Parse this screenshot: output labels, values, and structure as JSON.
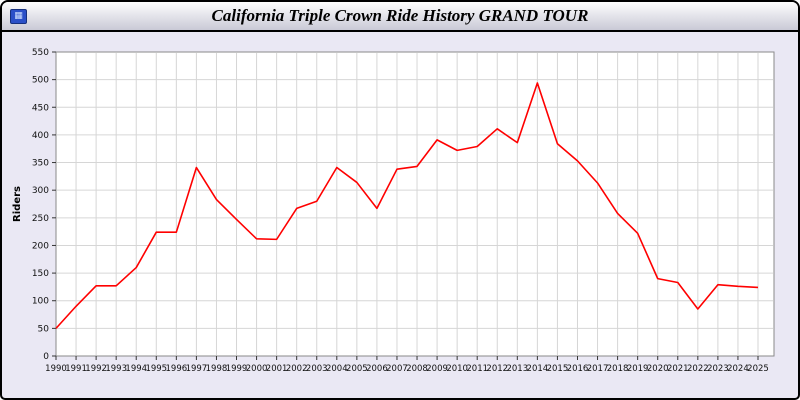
{
  "header": {
    "title": "California Triple Crown Ride History GRAND TOUR",
    "logo_glyph": "▦"
  },
  "chart_data": {
    "type": "line",
    "title": "California Triple Crown Ride History GRAND TOUR",
    "xlabel": "",
    "ylabel": "Riders",
    "ylim": [
      0,
      550
    ],
    "ytick_step": 50,
    "yticks": [
      0,
      50,
      100,
      150,
      200,
      250,
      300,
      350,
      400,
      450,
      500,
      550
    ],
    "grid": true,
    "legend": "none",
    "x": [
      1990,
      1991,
      1992,
      1993,
      1994,
      1995,
      1996,
      1997,
      1998,
      1999,
      2000,
      2001,
      2002,
      2003,
      2004,
      2005,
      2006,
      2007,
      2008,
      2009,
      2010,
      2011,
      2012,
      2013,
      2014,
      2015,
      2016,
      2017,
      2018,
      2019,
      2020,
      2021,
      2022,
      2023,
      2024,
      2025
    ],
    "series": [
      {
        "name": "Riders",
        "color": "#ff0000",
        "values": [
          50,
          90,
          127,
          127,
          160,
          224,
          224,
          341,
          283,
          247,
          212,
          211,
          267,
          280,
          341,
          314,
          267,
          338,
          343,
          391,
          372,
          379,
          411,
          386,
          494,
          384,
          353,
          313,
          258,
          222,
          140,
          133,
          85,
          129,
          126,
          124
        ]
      }
    ],
    "colors": {
      "plot_background": "#ffffff",
      "page_background": "#eae8f4",
      "gridline": "#d6d6d6",
      "plot_border": "#8a8a8a",
      "tick_text": "#111111"
    }
  }
}
